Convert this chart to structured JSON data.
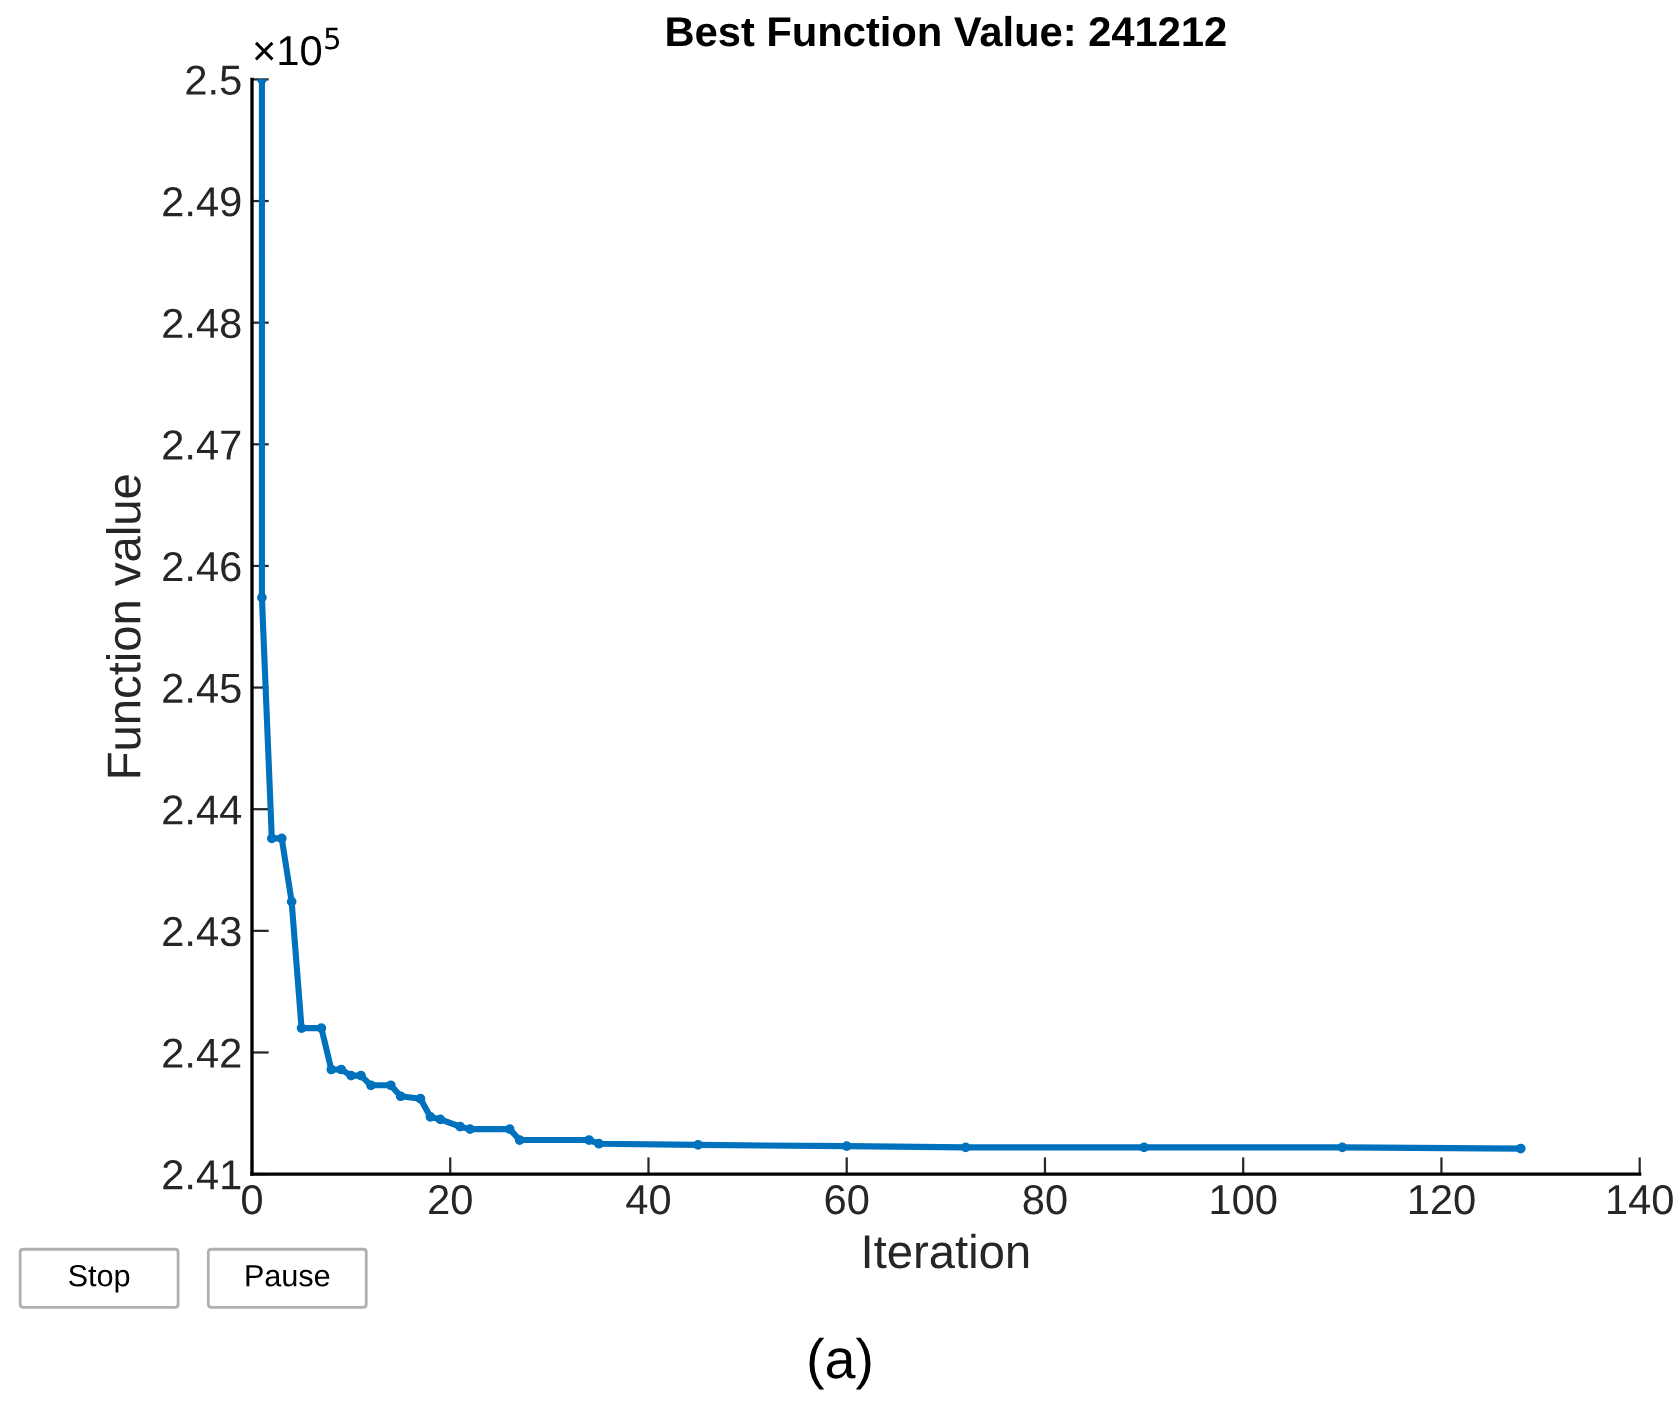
{
  "chart_data": {
    "type": "line",
    "title": "Best Function Value: 241212",
    "xlabel": "Iteration",
    "ylabel": "Function value",
    "annotations": [
      "×10$^{5}$",
      "Stop",
      "Pause",
      "(a)"
    ],
    "x": [
      1,
      1,
      2,
      3,
      4,
      5,
      7,
      8,
      9,
      10,
      11,
      12,
      14,
      15,
      17,
      18,
      19,
      21,
      22,
      26,
      27,
      34,
      35,
      45,
      60,
      72,
      90,
      110,
      128
    ],
    "series": [
      {
        "color": "#0072bd",
        "values": [
          2.5,
          2.4574,
          2.4376,
          2.4376,
          2.4324,
          2.422,
          2.422,
          2.4186,
          2.4186,
          2.4181,
          2.4181,
          2.4173,
          2.4173,
          2.4164,
          2.4162,
          2.4147,
          2.4145,
          2.4139,
          2.4137,
          2.4137,
          2.4128,
          2.4128,
          2.4125,
          2.4124,
          2.4123,
          2.4122,
          2.4122,
          2.4122,
          2.4121
        ]
      }
    ],
    "xlim": [
      0,
      140
    ],
    "ylim": [
      2.41,
      2.5
    ],
    "xticks": [
      0,
      20,
      40,
      60,
      80,
      100,
      120,
      140
    ],
    "yticks": [
      2.41,
      2.42,
      2.43,
      2.44,
      2.45,
      2.46,
      2.47,
      2.48,
      2.49,
      2.5
    ],
    "grid": false,
    "legend": false,
    "marker": "circle",
    "line_style": "solid"
  }
}
